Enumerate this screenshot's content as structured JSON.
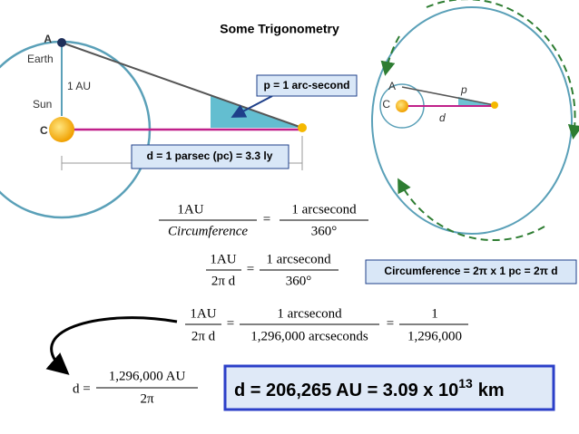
{
  "title": "Some Trigonometry",
  "left_diagram": {
    "point_a": "A",
    "earth": "Earth",
    "one_au": "1 AU",
    "sun": "Sun",
    "point_c": "C",
    "parallax_callout": "p = 1 arc-second",
    "distance_callout": "d = 1 parsec (pc) = 3.3 ly"
  },
  "right_diagram": {
    "point_a": "A",
    "point_c": "C",
    "angle": "p",
    "distance": "d",
    "circumference_callout": "Circumference = 2π x 1 pc = 2π d"
  },
  "equations": [
    {
      "left_num": "1AU",
      "left_den": "Circumference",
      "equals": "=",
      "right_num": "1 arcsecond",
      "right_den": "360°"
    },
    {
      "left_num": "1AU",
      "left_den": "2π d",
      "equals": "=",
      "right_num": "1 arcsecond",
      "right_den": "360°"
    },
    {
      "left_num": "1AU",
      "left_den": "2π d",
      "equals": "=",
      "right_num": "1 arcsecond",
      "right_den": "1,296,000  arcseconds",
      "equals2": "=",
      "third_num": "1",
      "third_den": "1,296,000"
    },
    {
      "lead": "d =",
      "num": "1,296,000   AU",
      "den": "2π"
    }
  ],
  "result": {
    "text": "d = 206,265 AU = 3.09 x 10",
    "exponent": "13",
    "unit": "km"
  }
}
